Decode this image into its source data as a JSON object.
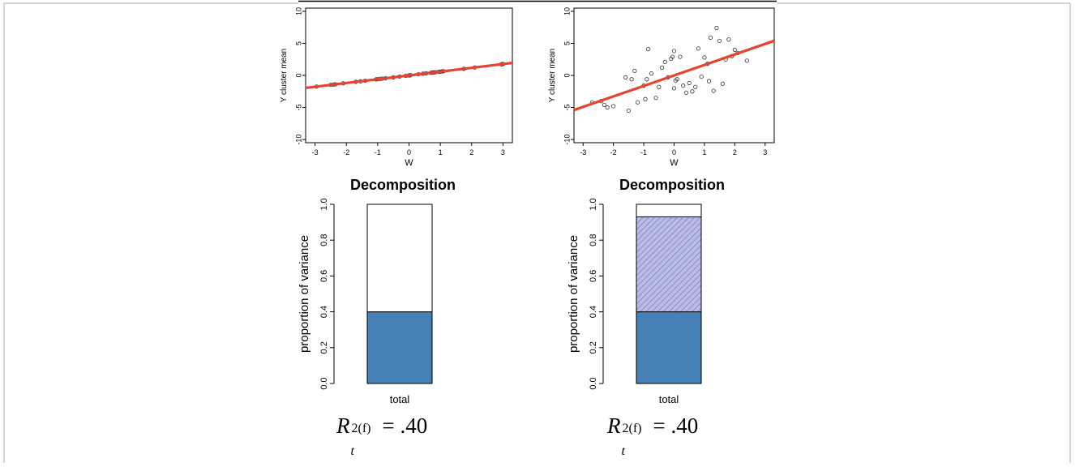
{
  "chart_data": [
    {
      "id": "scatter-left",
      "type": "scatter",
      "xlabel": "W",
      "ylabel": "Y cluster mean",
      "xlim": [
        -3.3,
        3.3
      ],
      "ylim": [
        -10.5,
        10.5
      ],
      "xticks": [
        -3,
        -2,
        -1,
        0,
        1,
        2,
        3
      ],
      "yticks": [
        -10,
        -5,
        0,
        5,
        10
      ],
      "line": {
        "x": [
          -3.3,
          3.3
        ],
        "y": [
          -1.95,
          1.95
        ],
        "color": "#e8432f"
      },
      "points": {
        "x": [
          -2.95,
          -2.5,
          -2.42,
          -2.35,
          -2.1,
          -1.7,
          -1.55,
          -1.4,
          -1.05,
          -1.0,
          -0.92,
          -0.85,
          -0.75,
          -0.5,
          -0.3,
          -0.1,
          0.0,
          0.05,
          0.3,
          0.45,
          0.55,
          0.7,
          0.75,
          0.8,
          0.85,
          0.95,
          1.0,
          1.05,
          1.1,
          1.75,
          2.1,
          2.95,
          3.0
        ],
        "y": [
          -1.75,
          -1.48,
          -1.43,
          -1.39,
          -1.24,
          -1.0,
          -0.92,
          -0.83,
          -0.62,
          -0.59,
          -0.54,
          -0.5,
          -0.44,
          -0.3,
          -0.18,
          -0.06,
          0.0,
          0.03,
          0.18,
          0.27,
          0.33,
          0.41,
          0.44,
          0.47,
          0.5,
          0.56,
          0.59,
          0.62,
          0.65,
          1.03,
          1.24,
          1.74,
          1.77
        ]
      }
    },
    {
      "id": "scatter-right",
      "type": "scatter",
      "xlabel": "W",
      "ylabel": "Y cluster mean",
      "xlim": [
        -3.3,
        3.3
      ],
      "ylim": [
        -10.5,
        10.5
      ],
      "xticks": [
        -3,
        -2,
        -1,
        0,
        1,
        2,
        3
      ],
      "yticks": [
        -10,
        -5,
        0,
        5,
        10
      ],
      "line": {
        "x": [
          -3.3,
          3.3
        ],
        "y": [
          -5.4,
          5.4
        ],
        "color": "#e8432f"
      },
      "points": {
        "x": [
          -2.7,
          -2.4,
          -2.3,
          -2.2,
          -2.0,
          -1.6,
          -1.5,
          -1.4,
          -1.3,
          -1.2,
          -1.0,
          -0.95,
          -0.9,
          -0.85,
          -0.75,
          -0.6,
          -0.5,
          -0.4,
          -0.3,
          -0.2,
          -0.1,
          -0.05,
          0.0,
          0.0,
          0.05,
          0.1,
          0.2,
          0.3,
          0.4,
          0.5,
          0.6,
          0.7,
          0.8,
          0.9,
          1.0,
          1.1,
          1.15,
          1.2,
          1.3,
          1.4,
          1.5,
          1.6,
          1.7,
          1.8,
          1.9,
          2.0,
          2.1,
          2.4
        ],
        "y": [
          -4.2,
          -4.0,
          -4.6,
          -5.0,
          -4.8,
          -0.3,
          -5.5,
          -0.6,
          0.7,
          -4.2,
          -1.6,
          -3.7,
          -0.6,
          4.1,
          0.3,
          -3.5,
          -1.8,
          1.2,
          2.1,
          -0.3,
          2.6,
          2.9,
          -2.0,
          3.8,
          -0.8,
          -0.6,
          2.9,
          -1.6,
          -2.7,
          -1.2,
          -2.5,
          -1.8,
          4.2,
          -0.2,
          2.8,
          1.8,
          -0.9,
          5.9,
          -2.4,
          7.4,
          5.4,
          -1.3,
          2.5,
          5.6,
          3.0,
          4.0,
          3.5,
          2.3
        ]
      }
    },
    {
      "id": "bar-left",
      "type": "bar",
      "title": "Decomposition",
      "ylabel": "proportion of variance",
      "categories": [
        "total"
      ],
      "ylim": [
        0,
        1
      ],
      "yticks": [
        "0.0",
        "0.2",
        "0.4",
        "0.6",
        "0.8",
        "1.0"
      ],
      "segments": [
        {
          "value": 0.4,
          "fill": "#4581b6",
          "pattern": "none"
        },
        {
          "value": 0.6,
          "fill": "#ffffff",
          "pattern": "none"
        }
      ]
    },
    {
      "id": "bar-right",
      "type": "bar",
      "title": "Decomposition",
      "ylabel": "proportion of variance",
      "categories": [
        "total"
      ],
      "ylim": [
        0,
        1
      ],
      "yticks": [
        "0.0",
        "0.2",
        "0.4",
        "0.6",
        "0.8",
        "1.0"
      ],
      "segments": [
        {
          "value": 0.4,
          "fill": "#4581b6",
          "pattern": "none"
        },
        {
          "value": 0.53,
          "fill": "#b9bde6",
          "pattern": "hatch"
        },
        {
          "value": 0.07,
          "fill": "#ffffff",
          "pattern": "none"
        }
      ]
    }
  ],
  "formulas": [
    {
      "base": "R",
      "sup": "2(f)",
      "sub": "t",
      "rest": "= .40"
    },
    {
      "base": "R",
      "sup": "2(f)",
      "sub": "t",
      "rest": "= .40"
    }
  ]
}
